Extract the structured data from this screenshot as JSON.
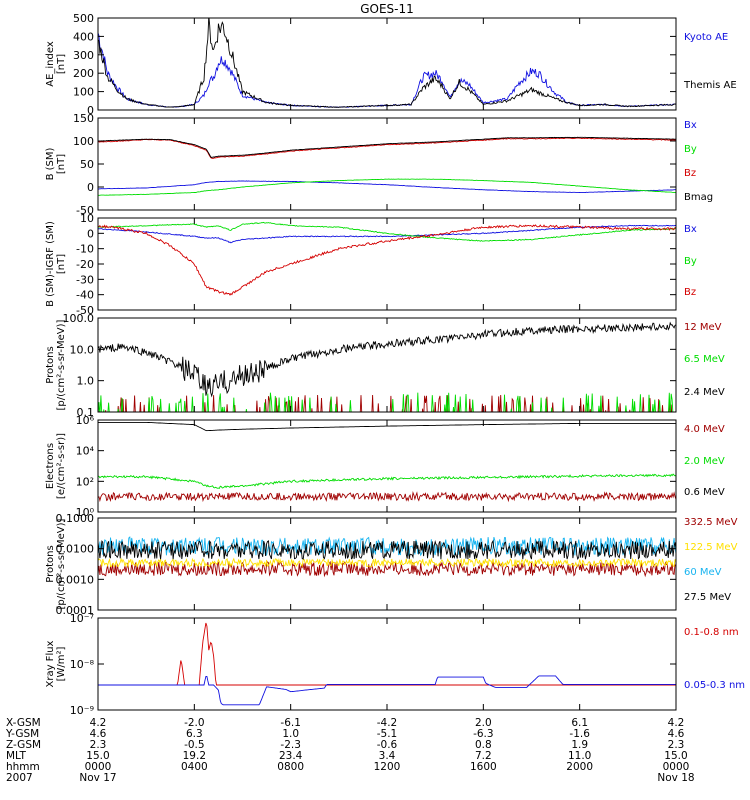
{
  "title": "GOES-11",
  "colors": {
    "blue": "#1010e0",
    "black": "#000000",
    "green": "#00dd00",
    "red": "#d40000",
    "darkred": "#a00000",
    "yellow": "#ffe000",
    "cyan": "#18b4f0"
  },
  "chart_data": [
    {
      "type": "line",
      "id": "p1",
      "ylabel": [
        "AE_index",
        "[nT]"
      ],
      "yscale": "linear",
      "ylim": [
        0,
        500
      ],
      "ticks": [
        "500",
        "400",
        "300",
        "200",
        "100",
        "0"
      ],
      "tick_values": [
        500,
        400,
        300,
        200,
        100,
        0
      ],
      "series": [
        {
          "name": "Kyoto AE",
          "color": "#1010e0",
          "x": [
            0,
            0.4,
            0.8,
            1.2,
            2,
            3,
            3.5,
            4,
            4.4,
            4.6,
            4.8,
            5,
            5.2,
            5.5,
            6,
            7,
            8,
            9,
            10,
            11,
            12,
            13,
            13.5,
            14,
            14.3,
            14.6,
            15,
            15.4,
            16,
            17,
            17.5,
            18,
            18.3,
            18.6,
            19,
            19.5,
            20,
            21,
            22,
            23,
            24
          ],
          "y": [
            420,
            200,
            120,
            60,
            30,
            15,
            20,
            30,
            80,
            150,
            180,
            260,
            280,
            220,
            80,
            40,
            25,
            20,
            15,
            20,
            25,
            30,
            180,
            200,
            160,
            70,
            160,
            140,
            40,
            60,
            150,
            210,
            200,
            150,
            90,
            40,
            25,
            30,
            20,
            25,
            30
          ]
        },
        {
          "name": "Themis AE",
          "color": "#000000",
          "x": [
            0,
            0.4,
            0.8,
            1.2,
            2,
            3,
            3.5,
            4,
            4.4,
            4.6,
            4.8,
            5,
            5.2,
            5.5,
            6,
            7,
            8,
            9,
            10,
            11,
            12,
            13,
            13.5,
            14,
            14.3,
            14.6,
            15,
            15.4,
            16,
            17,
            17.5,
            18,
            18.3,
            18.6,
            19,
            19.5,
            20,
            21,
            22,
            23,
            24
          ],
          "y": [
            380,
            180,
            110,
            60,
            30,
            15,
            20,
            30,
            180,
            460,
            320,
            440,
            460,
            330,
            100,
            40,
            25,
            20,
            15,
            20,
            25,
            30,
            120,
            170,
            130,
            60,
            150,
            110,
            30,
            50,
            80,
            110,
            95,
            80,
            60,
            40,
            25,
            30,
            20,
            25,
            30
          ]
        }
      ]
    },
    {
      "type": "line",
      "id": "p2",
      "ylabel": [
        "B (SM)",
        "[nT]"
      ],
      "yscale": "linear",
      "ylim": [
        -50,
        150
      ],
      "ticks": [
        "150",
        "100",
        "50",
        "0",
        "-50"
      ],
      "tick_values": [
        150,
        100,
        50,
        0,
        -50
      ],
      "series": [
        {
          "name": "Bx",
          "color": "#1010e0",
          "x": [
            0,
            2,
            4,
            4.5,
            5,
            6,
            8,
            10,
            12,
            14,
            16,
            18,
            20,
            22,
            24
          ],
          "y": [
            -4,
            -2,
            5,
            10,
            12,
            13,
            12,
            9,
            5,
            -1,
            -6,
            -10,
            -12,
            -9,
            -6
          ]
        },
        {
          "name": "By",
          "color": "#00dd00",
          "x": [
            0,
            2,
            4,
            4.5,
            5,
            6,
            8,
            10,
            12,
            14,
            16,
            18,
            20,
            22,
            24
          ],
          "y": [
            -18,
            -16,
            -12,
            -8,
            -6,
            0,
            9,
            14,
            17,
            17,
            14,
            10,
            2,
            -6,
            -12
          ]
        },
        {
          "name": "Bz",
          "color": "#d40000",
          "x": [
            0,
            1,
            2,
            3,
            4,
            4.5,
            4.7,
            5,
            6,
            7,
            8,
            10,
            12,
            14,
            16,
            17,
            18,
            20,
            22,
            24
          ],
          "y": [
            98,
            100,
            103,
            102,
            90,
            80,
            62,
            65,
            67,
            72,
            78,
            85,
            92,
            96,
            102,
            105,
            105,
            106,
            104,
            102
          ]
        },
        {
          "name": "Bmag",
          "color": "#000000",
          "x": [
            0,
            1,
            2,
            3,
            4,
            4.5,
            4.7,
            5,
            6,
            7,
            8,
            10,
            12,
            14,
            16,
            17,
            18,
            20,
            22,
            24
          ],
          "y": [
            100,
            102,
            104,
            103,
            92,
            82,
            64,
            67,
            69,
            74,
            80,
            87,
            94,
            98,
            104,
            107,
            107,
            108,
            106,
            104
          ]
        }
      ]
    },
    {
      "type": "line",
      "id": "p3",
      "ylabel": [
        "B (SM)-IGRF (SM)",
        "[nT]"
      ],
      "yscale": "linear",
      "ylim": [
        -50,
        10
      ],
      "ticks": [
        "10",
        "0",
        "-10",
        "-20",
        "-30",
        "-40",
        "-50"
      ],
      "tick_values": [
        10,
        0,
        -10,
        -20,
        -30,
        -40,
        -50
      ],
      "series": [
        {
          "name": "Bx",
          "color": "#1010e0",
          "x": [
            0,
            2,
            4,
            4.5,
            5,
            5.5,
            6,
            7,
            8,
            10,
            12,
            14,
            16,
            18,
            20,
            22,
            24
          ],
          "y": [
            3,
            1,
            -2,
            -3,
            -3,
            -6,
            -4,
            -3,
            -2,
            -2,
            -2,
            -1,
            0,
            2,
            4,
            5,
            5
          ]
        },
        {
          "name": "By",
          "color": "#00dd00",
          "x": [
            0,
            2,
            4,
            4.5,
            5,
            5.5,
            6,
            7,
            8,
            10,
            12,
            14,
            16,
            18,
            20,
            22,
            24
          ],
          "y": [
            4,
            5,
            6,
            4,
            5,
            2,
            6,
            7,
            5,
            4,
            0,
            -3,
            -5,
            -4,
            -1,
            2,
            3
          ]
        },
        {
          "name": "Bz",
          "color": "#d40000",
          "x": [
            0,
            1,
            2,
            3,
            4,
            4.5,
            5,
            5.5,
            6,
            7,
            8,
            9,
            10,
            12,
            14,
            16,
            18,
            20,
            22,
            24
          ],
          "y": [
            5,
            3,
            0,
            -8,
            -20,
            -35,
            -38,
            -40,
            -35,
            -25,
            -20,
            -15,
            -10,
            -5,
            -1,
            4,
            5,
            4,
            3,
            3
          ]
        }
      ]
    },
    {
      "type": "line",
      "id": "p4",
      "ylabel": [
        "Protons",
        "[p/(cm²-s-sr-MeV)]"
      ],
      "yscale": "log",
      "ylim": [
        0.1,
        100
      ],
      "ticks": [
        "100.0",
        "10.0",
        "1.0",
        "0.1"
      ],
      "tick_values": [
        100,
        10,
        1,
        0.1
      ],
      "series": [
        {
          "name": "12 MeV",
          "color": "#a00000",
          "x": [
            0,
            24
          ],
          "y": [
            0.1,
            0.1
          ]
        },
        {
          "name": "6.5 MeV",
          "color": "#00dd00",
          "x": [
            0,
            24
          ],
          "y": [
            0.12,
            0.12
          ]
        },
        {
          "name": "2.4 MeV",
          "color": "#000000",
          "x": [
            0,
            1,
            2,
            3,
            4,
            4.5,
            5,
            5.5,
            6,
            7,
            8,
            10,
            12,
            14,
            16,
            18,
            20,
            22,
            24
          ],
          "y": [
            10,
            12,
            8,
            4,
            1.5,
            0.6,
            0.8,
            1,
            1.5,
            2.5,
            5,
            10,
            15,
            20,
            30,
            40,
            45,
            50,
            55
          ]
        }
      ]
    },
    {
      "type": "line",
      "id": "p5",
      "ylabel": [
        "Electrons",
        "[e/(cm²-s-sr)]"
      ],
      "yscale": "log",
      "ylim": [
        1,
        1000000
      ],
      "ticks": [
        "10⁶",
        "10⁴",
        "10²",
        "10⁰"
      ],
      "tick_values": [
        1000000,
        10000,
        100,
        1
      ],
      "series": [
        {
          "name": "4.0 MeV",
          "color": "#a00000",
          "x": [
            0,
            24
          ],
          "y": [
            10,
            10
          ]
        },
        {
          "name": "2.0 MeV",
          "color": "#00dd00",
          "x": [
            0,
            2,
            4,
            4.5,
            5,
            6,
            8,
            12,
            16,
            20,
            24
          ],
          "y": [
            200,
            200,
            100,
            50,
            40,
            50,
            100,
            150,
            180,
            220,
            250
          ]
        },
        {
          "name": "0.6 MeV",
          "color": "#000000",
          "x": [
            0,
            2,
            4,
            4.5,
            5,
            6,
            8,
            12,
            16,
            20,
            24
          ],
          "y": [
            700000,
            700000,
            500000,
            200000,
            220000,
            250000,
            300000,
            400000,
            500000,
            600000,
            600000
          ]
        }
      ]
    },
    {
      "type": "line",
      "id": "p6",
      "ylabel": [
        "Protons",
        "[p/(cm²-s-sr-MeV)]"
      ],
      "yscale": "log",
      "ylim": [
        0.0001,
        0.1
      ],
      "ticks": [
        "0.1000",
        "0.0100",
        "0.0010",
        "0.0001"
      ],
      "tick_values": [
        0.1,
        0.01,
        0.001,
        0.0001
      ],
      "series": [
        {
          "name": "332.5 MeV",
          "color": "#a00000",
          "x": [
            0,
            24
          ],
          "y": [
            0.0022,
            0.0022
          ]
        },
        {
          "name": "122.5 MeV",
          "color": "#ffe000",
          "x": [
            0,
            24
          ],
          "y": [
            0.0035,
            0.0035
          ]
        },
        {
          "name": "60 MeV",
          "color": "#18b4f0",
          "x": [
            0,
            24
          ],
          "y": [
            0.012,
            0.012
          ]
        },
        {
          "name": "27.5 MeV",
          "color": "#000000",
          "x": [
            0,
            24
          ],
          "y": [
            0.009,
            0.009
          ]
        }
      ]
    },
    {
      "type": "line",
      "id": "p7",
      "ylabel": [
        "Xray Flux",
        "[W/m²]"
      ],
      "yscale": "log",
      "ylim": [
        1e-09,
        1e-07
      ],
      "ticks": [
        "10⁻⁷",
        "10⁻⁸",
        "10⁻⁹"
      ],
      "tick_values": [
        1e-07,
        1e-08,
        1e-09
      ],
      "series": [
        {
          "name": "0.1-0.8 nm",
          "color": "#d40000",
          "x": [
            0,
            3.3,
            3.45,
            3.6,
            4.2,
            4.35,
            4.5,
            4.6,
            4.7,
            4.8,
            4.9,
            5.0,
            5.1,
            5.2,
            24
          ],
          "y": [
            3.5e-09,
            3.5e-09,
            1.3e-08,
            3.5e-09,
            3.5e-09,
            3e-08,
            9e-08,
            2e-08,
            3.2e-08,
            1.5e-08,
            3.5e-09,
            3.5e-09,
            3.5e-09,
            3.5e-09,
            3.5e-09
          ]
        },
        {
          "name": "0.05-0.3 nm",
          "color": "#1010e0",
          "x": [
            0,
            4.4,
            4.5,
            4.6,
            4.8,
            5.0,
            5.1,
            5.2,
            6.7,
            7,
            7.8,
            8,
            9.4,
            9.5,
            14,
            14.1,
            16,
            16.1,
            16.5,
            17.8,
            18.3,
            19,
            19.3,
            24
          ],
          "y": [
            3.5e-09,
            3.5e-09,
            6e-09,
            3.5e-09,
            3.5e-09,
            2.7e-09,
            1.4e-09,
            1.3e-09,
            1.3e-09,
            3.2e-09,
            2.8e-09,
            2.5e-09,
            3e-09,
            3.6e-09,
            3.6e-09,
            5.2e-09,
            5.2e-09,
            3.8e-09,
            3.1e-09,
            3.1e-09,
            5.5e-09,
            5.5e-09,
            3.6e-09,
            3.6e-09
          ]
        }
      ]
    }
  ],
  "footer": {
    "labels": [
      "X-GSM",
      "Y-GSM",
      "Z-GSM",
      "MLT",
      "hhmm",
      "2007"
    ],
    "columns": [
      [
        "4.2",
        "4.6",
        "2.3",
        "15.0",
        "0000",
        "Nov 17"
      ],
      [
        "-2.0",
        "6.3",
        "-0.5",
        "19.2",
        "0400",
        ""
      ],
      [
        "-6.1",
        "1.0",
        "-2.3",
        "23.4",
        "0800",
        ""
      ],
      [
        "-4.2",
        "-5.1",
        "-0.6",
        "3.4",
        "1200",
        ""
      ],
      [
        "2.0",
        "-6.3",
        "0.8",
        "7.2",
        "1600",
        ""
      ],
      [
        "6.1",
        "-1.6",
        "1.9",
        "11.0",
        "2000",
        ""
      ],
      [
        "4.2",
        "4.6",
        "2.3",
        "15.0",
        "0000",
        "Nov 18"
      ]
    ]
  }
}
